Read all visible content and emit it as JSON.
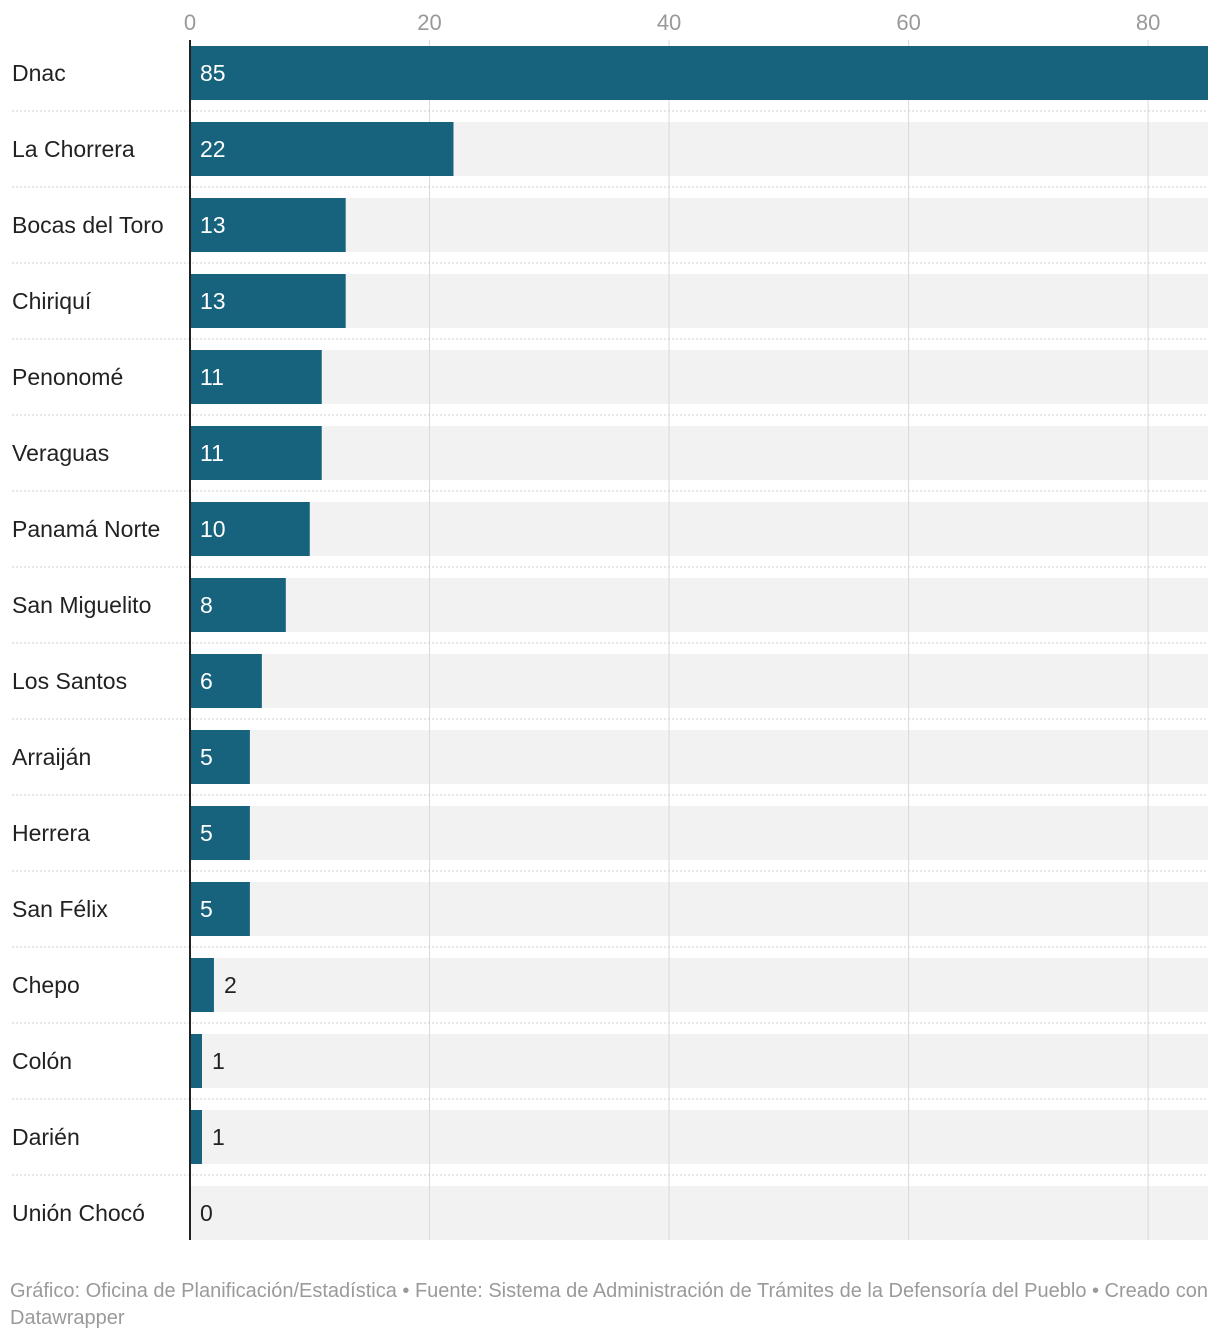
{
  "chart_data": {
    "type": "bar",
    "orientation": "horizontal",
    "title": "",
    "xlabel": "",
    "ylabel": "",
    "categories": [
      "Dnac",
      "La Chorrera",
      "Bocas del Toro",
      "Chiriquí",
      "Penonomé",
      "Veraguas",
      "Panamá Norte",
      "San Miguelito",
      "Los Santos",
      "Arraiján",
      "Herrera",
      "San Félix",
      "Chepo",
      "Colón",
      "Darién",
      "Unión Chocó"
    ],
    "values": [
      85,
      22,
      13,
      13,
      11,
      11,
      10,
      8,
      6,
      5,
      5,
      5,
      2,
      1,
      1,
      0
    ],
    "value_labels": [
      "85",
      "22",
      "13",
      "13",
      "11",
      "11",
      "10",
      "8",
      "6",
      "5",
      "5",
      "5",
      "2",
      "1",
      "1",
      "0"
    ],
    "xlim": [
      0,
      85
    ],
    "ticks": [
      0,
      20,
      40,
      60,
      80
    ],
    "tick_labels": [
      "0",
      "20",
      "40",
      "60",
      "80"
    ],
    "axis_position": "top",
    "grid": true,
    "legend": "none",
    "colors": {
      "bar": "#17637d",
      "track": "#f2f2f2",
      "grid": "#d9d9d9",
      "tick_text": "#999999",
      "label_text": "#222222",
      "label_inside": "#ffffff"
    }
  },
  "footer": {
    "text": "Gráfico: Oficina de Planificación/Estadística • Fuente: Sistema de Administración de Trámites de la Defensoría del Pueblo • Creado con Datawrapper"
  }
}
